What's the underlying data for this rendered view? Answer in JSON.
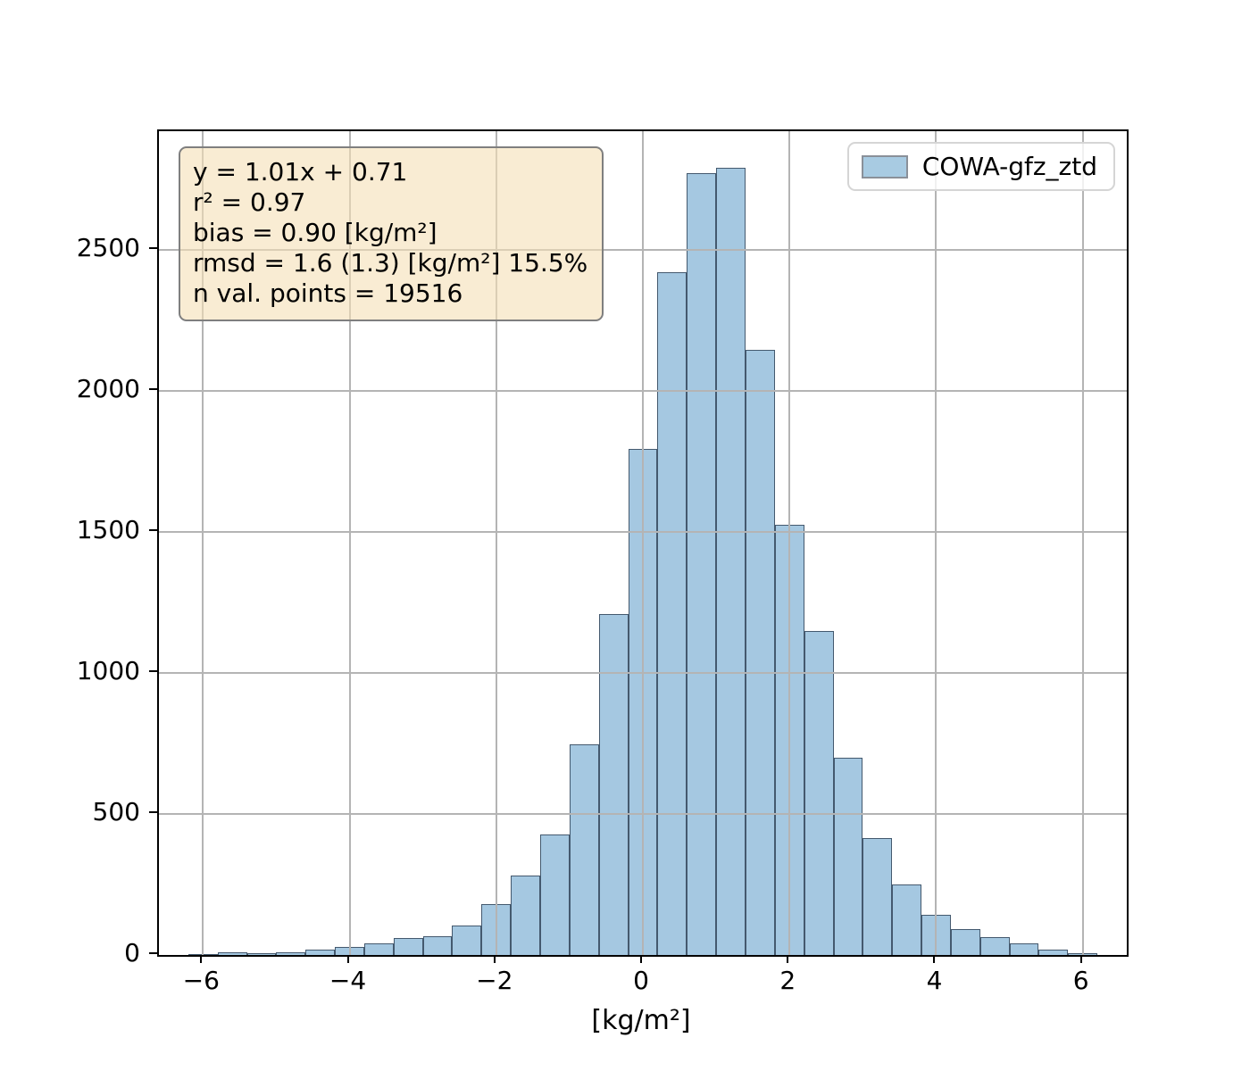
{
  "figure": {
    "background": "#ffffff"
  },
  "legend": {
    "label": "COWA-gfz_ztd",
    "swatch_fill": "#a8cbe2",
    "swatch_border": "#8a9099"
  },
  "stats_box": {
    "lines": [
      "y = 1.01x + 0.71",
      "r² = 0.97",
      "bias = 0.90 [kg/m²]",
      "rmsd = 1.6 (1.3) [kg/m²] 15.5%",
      "n val. points = 19516"
    ],
    "background": "#f8eeda",
    "border_color": "#7f7f7f"
  },
  "axes": {
    "xlabel": "[kg/m²]",
    "ylabel": "",
    "xlim": [
      -6.6,
      6.6
    ],
    "ylim": [
      0,
      2920
    ],
    "xticks": [
      -6,
      -4,
      -2,
      0,
      2,
      4,
      6
    ],
    "xtick_labels": [
      "−6",
      "−4",
      "−2",
      "0",
      "2",
      "4",
      "6"
    ],
    "yticks": [
      0,
      500,
      1000,
      1500,
      2000,
      2500
    ],
    "ytick_labels": [
      "0",
      "500",
      "1000",
      "1500",
      "2000",
      "2500"
    ],
    "grid": true,
    "grid_color": "#b4b4b4",
    "spine_color": "#000000"
  },
  "chart_data": {
    "type": "bar",
    "subtype": "histogram",
    "title": "",
    "xlabel": "[kg/m²]",
    "ylabel": "",
    "series_name": "COWA-gfz_ztd",
    "bin_width": 0.4,
    "bin_centers": [
      -6.0,
      -5.6,
      -5.2,
      -4.8,
      -4.4,
      -4.0,
      -3.6,
      -3.2,
      -2.8,
      -2.4,
      -2.0,
      -1.6,
      -1.2,
      -0.8,
      -0.4,
      0.0,
      0.4,
      0.8,
      1.2,
      1.6,
      2.0,
      2.4,
      2.8,
      3.2,
      3.6,
      4.0,
      4.4,
      4.8,
      5.2,
      5.6,
      6.0
    ],
    "counts": [
      2,
      9,
      5,
      11,
      18,
      30,
      40,
      60,
      66,
      105,
      180,
      283,
      428,
      748,
      1210,
      1795,
      2420,
      2770,
      2790,
      2145,
      1525,
      1150,
      700,
      415,
      250,
      142,
      91,
      63,
      41,
      18,
      6
    ],
    "n_points_total": 19516,
    "bar_fill": "#a5c8e1",
    "bar_edge": "#44596e",
    "xlim": [
      -6.6,
      6.6
    ],
    "ylim": [
      0,
      2920
    ],
    "legend_position": "upper right",
    "grid": true
  }
}
